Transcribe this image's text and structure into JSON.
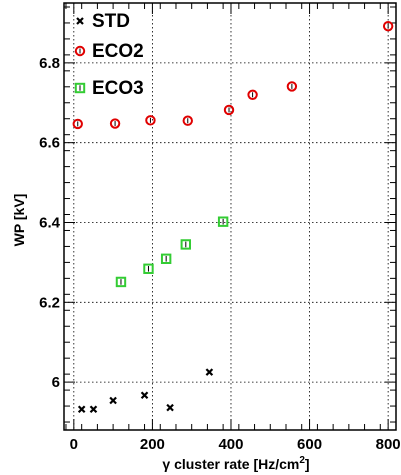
{
  "chart_data": {
    "type": "scatter",
    "xlabel_prefix": "γ cluster rate [Hz/cm",
    "xlabel_sup": "2",
    "xlabel_suffix": "]",
    "ylabel": "WP [kV]",
    "xlim": [
      -25,
      820
    ],
    "ylim": [
      5.88,
      6.95
    ],
    "xticks": [
      0,
      200,
      400,
      600,
      800
    ],
    "yticks": [
      6.0,
      6.2,
      6.4,
      6.6,
      6.8
    ],
    "grid": true,
    "legend_position": "top-left",
    "series": [
      {
        "name": "STD",
        "marker": "x",
        "color": "#000000",
        "x": [
          20,
          50,
          100,
          180,
          245,
          345
        ],
        "y": [
          5.932,
          5.932,
          5.954,
          5.967,
          5.936,
          6.025
        ]
      },
      {
        "name": "ECO2",
        "marker": "circle",
        "color": "#e00000",
        "x": [
          10,
          105,
          195,
          290,
          395,
          455,
          555,
          800
        ],
        "y": [
          6.647,
          6.648,
          6.656,
          6.655,
          6.682,
          6.72,
          6.741,
          6.892
        ]
      },
      {
        "name": "ECO3",
        "marker": "square",
        "color": "#33cc33",
        "x": [
          120,
          190,
          235,
          285,
          380
        ],
        "y": [
          6.251,
          6.284,
          6.309,
          6.345,
          6.402
        ]
      }
    ]
  }
}
